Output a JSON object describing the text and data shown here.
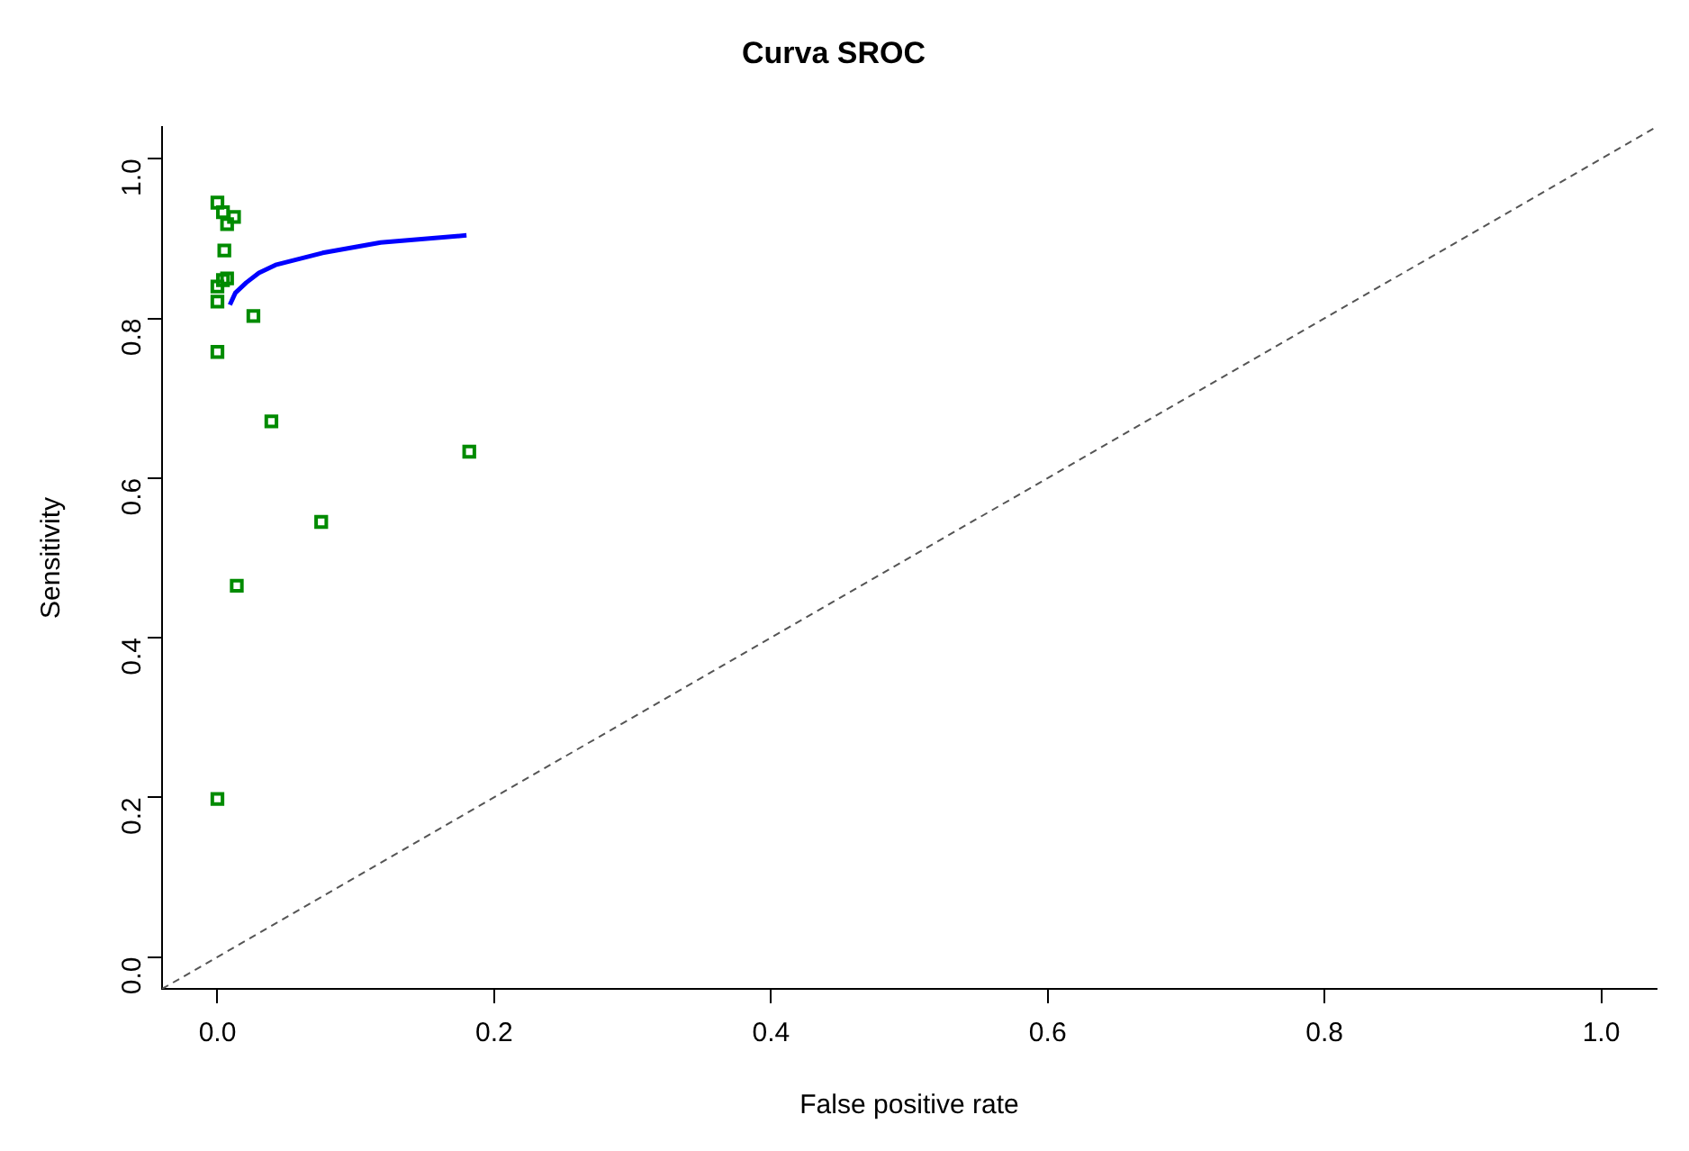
{
  "chart_data": {
    "type": "scatter",
    "title": "Curva SROC",
    "xlabel": "False positive rate",
    "ylabel": "Sensitivity",
    "xlim": [
      -0.04,
      1.04
    ],
    "ylim": [
      -0.04,
      1.04
    ],
    "xticks": [
      {
        "value": 0,
        "label": "0.0"
      },
      0.2,
      0.4,
      0.6,
      0.8,
      {
        "value": 1,
        "label": "1.0"
      }
    ],
    "yticks": [
      {
        "value": 0,
        "label": "0.0"
      },
      0.2,
      0.4,
      0.6,
      0.8,
      {
        "value": 1,
        "label": "1.0"
      }
    ],
    "grid": false,
    "legend": false,
    "series": [
      {
        "color": "#008b00",
        "marker": "square",
        "x": [
          0,
          0.004,
          0.012,
          0.007,
          0.005,
          0.007,
          0,
          0.004,
          0,
          0.026,
          0,
          0.182,
          0.039,
          0.075,
          0.014,
          0
        ],
        "values": [
          0.945,
          0.933,
          0.927,
          0.918,
          0.885,
          0.85,
          0.84,
          0.848,
          0.821,
          0.803,
          0.758,
          0.633,
          0.671,
          0.545,
          0.465,
          0.198
        ]
      },
      {
        "type": "line",
        "color": "#0000ff",
        "marker": "none",
        "line_style": "solid",
        "x": [
          0.009,
          0.013,
          0.021,
          0.03,
          0.042,
          0.076,
          0.118,
          0.18
        ],
        "values": [
          0.817,
          0.832,
          0.845,
          0.857,
          0.867,
          0.882,
          0.895,
          0.904
        ]
      },
      {
        "type": "line",
        "color": "#555555",
        "marker": "none",
        "line_style": "dashed",
        "x": [
          -0.04,
          1.04
        ],
        "values": [
          -0.04,
          1.04
        ]
      }
    ]
  }
}
